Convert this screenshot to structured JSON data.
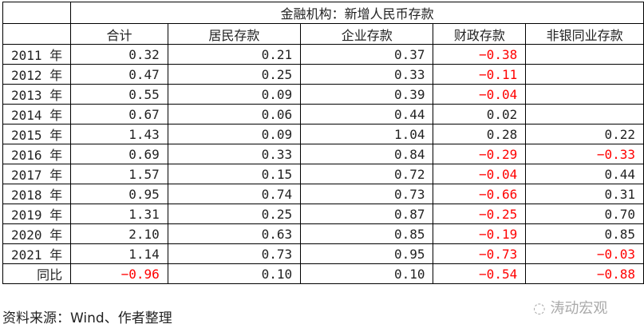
{
  "title": "金融机构：新增人民币存款",
  "columns": [
    "合计",
    "居民存款",
    "企业存款",
    "财政存款",
    "非银同业存款"
  ],
  "rows": [
    {
      "label": "2011 年",
      "values": [
        "0.32",
        "0.21",
        "0.37",
        "−0.38",
        ""
      ]
    },
    {
      "label": "2012 年",
      "values": [
        "0.47",
        "0.25",
        "0.33",
        "−0.11",
        ""
      ]
    },
    {
      "label": "2013 年",
      "values": [
        "0.55",
        "0.09",
        "0.39",
        "−0.04",
        ""
      ]
    },
    {
      "label": "2014 年",
      "values": [
        "0.67",
        "0.06",
        "0.44",
        "0.02",
        ""
      ]
    },
    {
      "label": "2015 年",
      "values": [
        "1.43",
        "0.09",
        "1.04",
        "0.28",
        "0.22"
      ]
    },
    {
      "label": "2016 年",
      "values": [
        "0.69",
        "0.33",
        "0.84",
        "−0.29",
        "−0.33"
      ]
    },
    {
      "label": "2017 年",
      "values": [
        "1.57",
        "0.15",
        "0.72",
        "−0.04",
        "0.44"
      ]
    },
    {
      "label": "2018 年",
      "values": [
        "0.95",
        "0.74",
        "0.73",
        "−0.66",
        "0.31"
      ]
    },
    {
      "label": "2019 年",
      "values": [
        "1.31",
        "0.25",
        "0.87",
        "−0.25",
        "0.70"
      ]
    },
    {
      "label": "2020 年",
      "values": [
        "2.10",
        "0.63",
        "0.85",
        "−0.19",
        "0.85"
      ]
    },
    {
      "label": "2021 年",
      "values": [
        "1.14",
        "0.73",
        "0.95",
        "−0.73",
        "−0.03"
      ]
    },
    {
      "label": "同比",
      "values": [
        "−0.96",
        "0.10",
        "0.10",
        "−0.54",
        "−0.88"
      ]
    }
  ],
  "source": "资料来源：Wind、作者整理",
  "watermark": "涛动宏观",
  "colors": {
    "negative": "#ff0000",
    "text": "#222222"
  }
}
